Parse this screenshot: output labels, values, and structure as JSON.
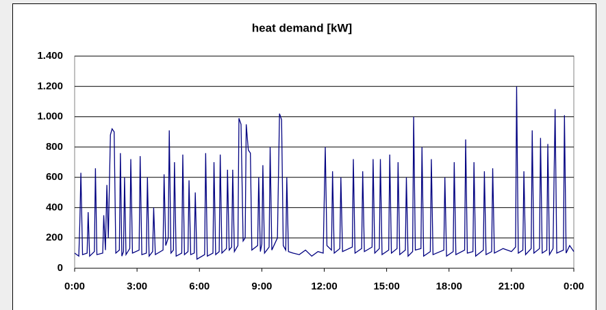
{
  "chart_data": {
    "type": "line",
    "title": "heat demand [kW]",
    "x": [
      0,
      0.2,
      0.25,
      0.3,
      0.38,
      0.6,
      0.65,
      0.72,
      0.95,
      1.0,
      1.07,
      1.35,
      1.4,
      1.48,
      1.55,
      1.62,
      1.72,
      1.8,
      1.9,
      1.98,
      2.15,
      2.2,
      2.27,
      2.35,
      2.4,
      2.47,
      2.65,
      2.7,
      2.78,
      3.1,
      3.15,
      3.23,
      3.45,
      3.5,
      3.58,
      3.75,
      3.8,
      3.88,
      4.25,
      4.3,
      4.38,
      4.5,
      4.55,
      4.63,
      4.75,
      4.8,
      4.88,
      5.15,
      5.2,
      5.28,
      5.45,
      5.5,
      5.58,
      5.75,
      5.8,
      5.88,
      6.25,
      6.3,
      6.38,
      6.65,
      6.7,
      6.78,
      6.95,
      7.0,
      7.08,
      7.3,
      7.35,
      7.43,
      7.55,
      7.6,
      7.68,
      7.85,
      7.9,
      8.0,
      8.1,
      8.2,
      8.25,
      8.35,
      8.45,
      8.52,
      8.8,
      8.85,
      8.93,
      9.0,
      9.05,
      9.13,
      9.35,
      9.4,
      9.48,
      9.75,
      9.85,
      9.95,
      10.03,
      10.15,
      10.2,
      10.28,
      10.5,
      10.8,
      11.1,
      11.4,
      11.7,
      11.95,
      12.05,
      12.13,
      12.35,
      12.4,
      12.48,
      12.75,
      12.8,
      12.88,
      13.35,
      13.4,
      13.48,
      13.8,
      13.85,
      13.93,
      14.3,
      14.35,
      14.43,
      14.65,
      14.7,
      14.78,
      15.1,
      15.15,
      15.23,
      15.5,
      15.55,
      15.63,
      15.9,
      15.95,
      16.03,
      16.25,
      16.3,
      16.38,
      16.65,
      16.7,
      16.78,
      17.1,
      17.15,
      17.23,
      17.75,
      17.8,
      17.88,
      18.2,
      18.25,
      18.33,
      18.75,
      18.8,
      18.88,
      19.15,
      19.2,
      19.28,
      19.65,
      19.7,
      19.78,
      20.05,
      20.1,
      20.18,
      20.6,
      21.0,
      21.2,
      21.25,
      21.33,
      21.55,
      21.6,
      21.68,
      21.95,
      22.0,
      22.08,
      22.35,
      22.4,
      22.48,
      22.7,
      22.75,
      22.83,
      23.0,
      23.1,
      23.18,
      23.5,
      23.55,
      23.63,
      23.8,
      24
    ],
    "series": [
      {
        "name": "heat demand",
        "color": "#000080",
        "values": [
          100,
          80,
          300,
          630,
          90,
          100,
          370,
          80,
          110,
          660,
          90,
          100,
          350,
          120,
          550,
          200,
          880,
          920,
          900,
          100,
          120,
          760,
          80,
          110,
          600,
          90,
          130,
          720,
          100,
          120,
          740,
          90,
          100,
          600,
          80,
          110,
          400,
          90,
          120,
          620,
          150,
          200,
          910,
          100,
          120,
          700,
          80,
          100,
          750,
          90,
          110,
          580,
          90,
          100,
          500,
          60,
          90,
          760,
          80,
          100,
          700,
          90,
          110,
          750,
          100,
          130,
          650,
          120,
          140,
          650,
          110,
          150,
          990,
          950,
          180,
          200,
          950,
          780,
          760,
          120,
          150,
          600,
          110,
          160,
          680,
          100,
          140,
          800,
          120,
          200,
          1020,
          980,
          150,
          120,
          600,
          110,
          100,
          90,
          120,
          80,
          110,
          100,
          800,
          150,
          120,
          640,
          100,
          130,
          600,
          110,
          140,
          720,
          100,
          130,
          640,
          110,
          140,
          720,
          100,
          130,
          720,
          90,
          120,
          750,
          100,
          130,
          700,
          90,
          120,
          600,
          80,
          110,
          1000,
          120,
          130,
          800,
          80,
          110,
          720,
          90,
          120,
          600,
          80,
          110,
          700,
          90,
          120,
          850,
          100,
          110,
          700,
          80,
          120,
          640,
          90,
          110,
          660,
          100,
          130,
          110,
          140,
          1200,
          100,
          120,
          640,
          90,
          130,
          910,
          100,
          130,
          860,
          100,
          120,
          820,
          90,
          130,
          1050,
          100,
          120,
          1010,
          100,
          150,
          110
        ]
      }
    ],
    "xlim": [
      0,
      24
    ],
    "xticks": [
      {
        "value": 0,
        "label": "0:00"
      },
      {
        "value": 3,
        "label": "3:00"
      },
      {
        "value": 6,
        "label": "6:00"
      },
      {
        "value": 9,
        "label": "9:00"
      },
      {
        "value": 12,
        "label": "12:00"
      },
      {
        "value": 15,
        "label": "15:00"
      },
      {
        "value": 18,
        "label": "18:00"
      },
      {
        "value": 21,
        "label": "21:00"
      },
      {
        "value": 24,
        "label": "0:00"
      }
    ],
    "ylim": [
      0,
      1400
    ],
    "yticks": [
      0,
      200,
      400,
      600,
      800,
      {
        "value": 1000,
        "label": "1.000"
      },
      {
        "value": 1200,
        "label": "1.200"
      },
      {
        "value": 1400,
        "label": "1.400"
      }
    ],
    "grid": true
  }
}
